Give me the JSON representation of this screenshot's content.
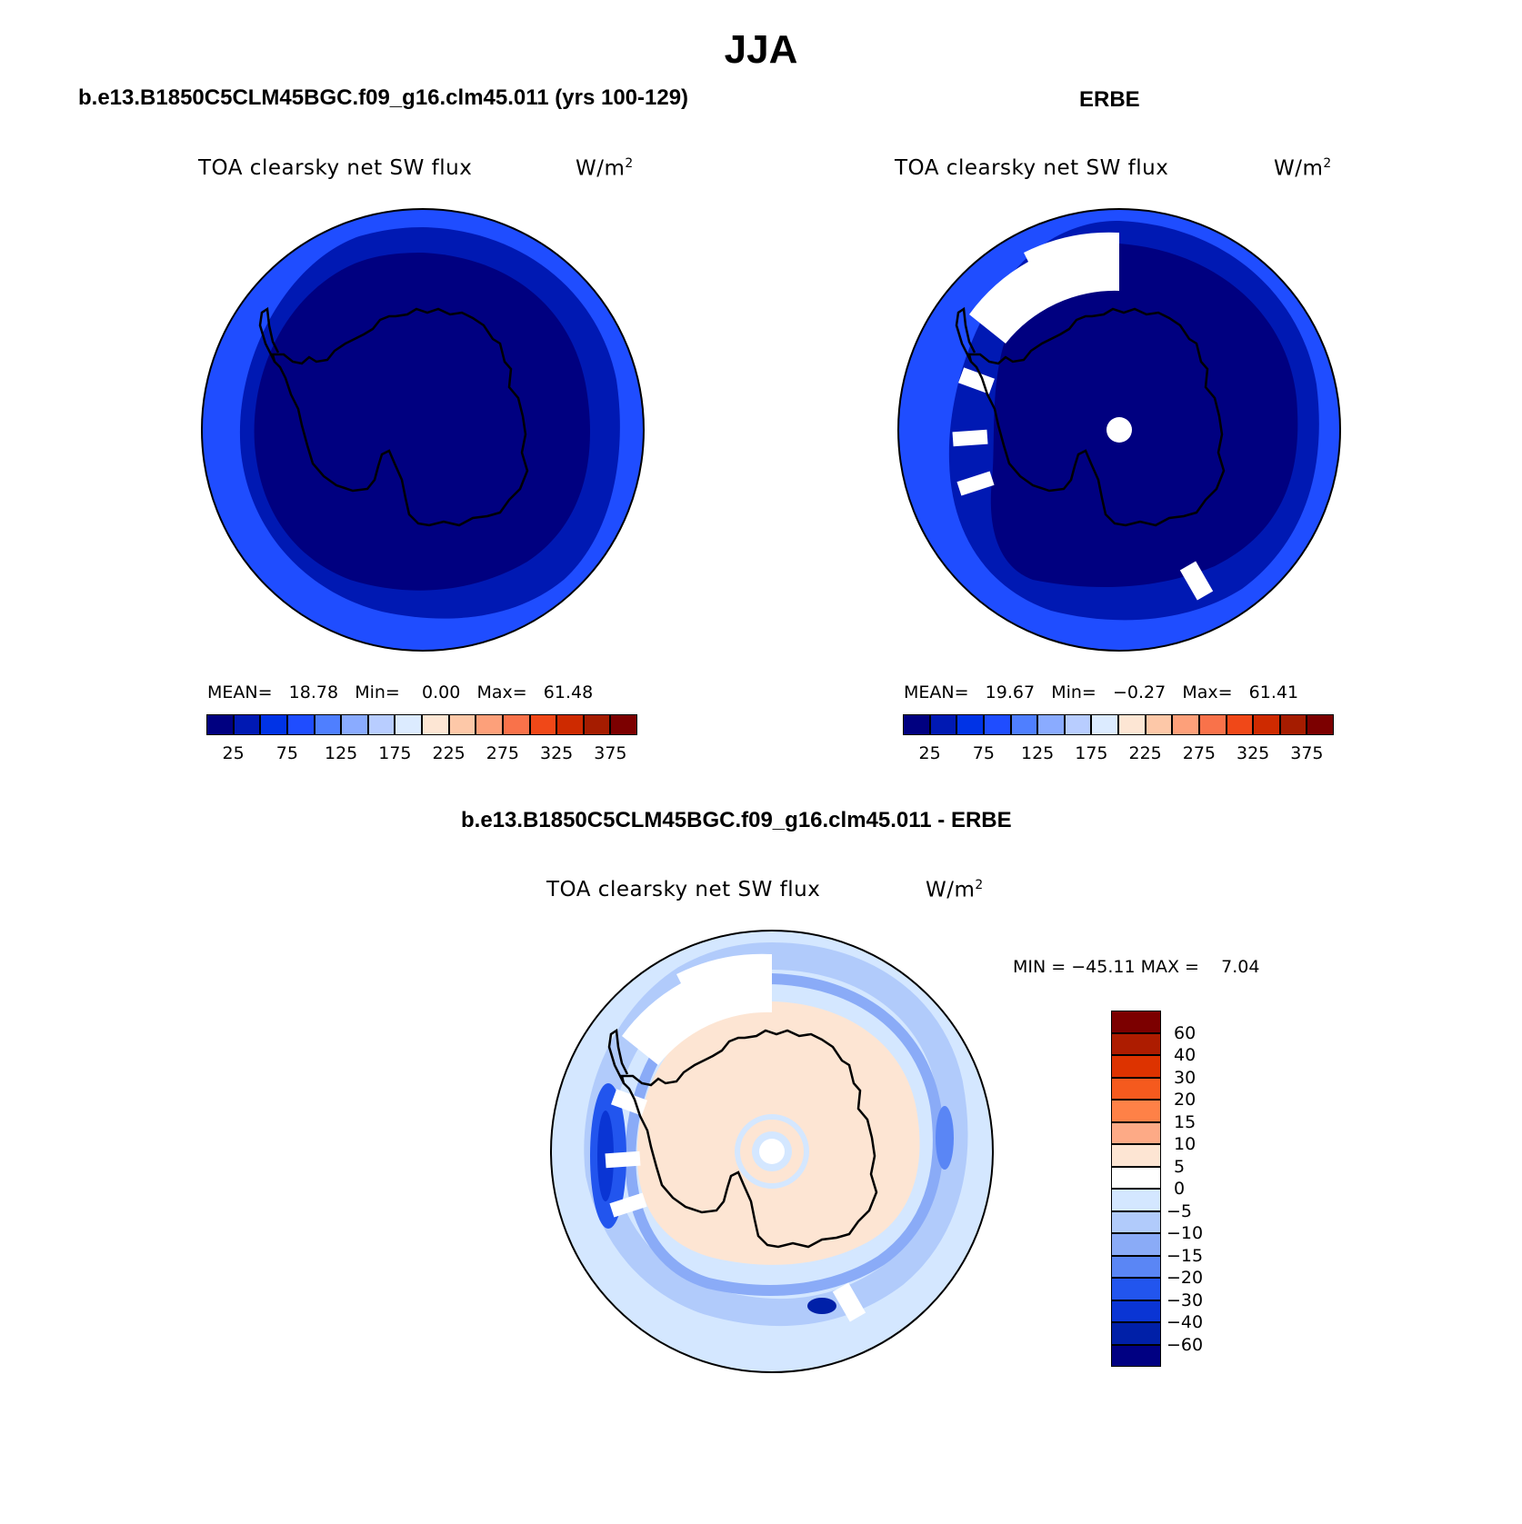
{
  "header": {
    "title": "JJA",
    "left_case": "b.e13.B1850C5CLM45BGC.f09_g16.clm45.011 (yrs 100-129)",
    "right_case": "ERBE",
    "diff_case": "b.e13.B1850C5CLM45BGC.f09_g16.clm45.011 - ERBE"
  },
  "panels": {
    "model": {
      "variable": "TOA clearsky net SW flux",
      "units_base": "W/m",
      "units_exp": "2",
      "mean_label": "MEAN=",
      "mean": "18.78",
      "min_label": "Min=",
      "min": "0.00",
      "max_label": "Max=",
      "max": "61.48"
    },
    "obs": {
      "variable": "TOA clearsky net SW flux",
      "units_base": "W/m",
      "units_exp": "2",
      "mean_label": "MEAN=",
      "mean": "19.67",
      "min_label": "Min=",
      "min": "−0.27",
      "max_label": "Max=",
      "max": "61.41"
    },
    "diff": {
      "variable": "TOA clearsky net SW flux",
      "units_base": "W/m",
      "units_exp": "2",
      "min_label": "MIN =",
      "min": "−45.11",
      "max_label": "MAX =",
      "max": "7.04"
    }
  },
  "colorbar_abs": {
    "colors": [
      "#000080",
      "#0019b3",
      "#0033e6",
      "#1f4dff",
      "#4f7fff",
      "#8aabff",
      "#b8cdff",
      "#dcebff",
      "#fde6d4",
      "#fdc8a8",
      "#fda07a",
      "#f9724a",
      "#f04818",
      "#ce2a00",
      "#a51c00",
      "#7c0000"
    ],
    "labels": [
      "25",
      "75",
      "125",
      "175",
      "225",
      "275",
      "325",
      "375"
    ]
  },
  "colorbar_diff": {
    "colors": [
      "#7c0000",
      "#ad1c00",
      "#dd3300",
      "#f55a1e",
      "#fe8147",
      "#fdaa86",
      "#fde5d3",
      "#ffffff",
      "#d4e7ff",
      "#b1cbfb",
      "#8aabf7",
      "#5a86f5",
      "#2255ee",
      "#0a35d4",
      "#0020a8",
      "#000082"
    ],
    "labels": [
      "60",
      "40",
      "30",
      "20",
      "15",
      "10",
      "5",
      "0",
      "−5",
      "−10",
      "−15",
      "−20",
      "−30",
      "−40",
      "−60"
    ]
  },
  "chart_data": [
    {
      "type": "heatmap",
      "panel": "model",
      "projection": "south polar stereographic",
      "mean": 18.78,
      "min": 0.0,
      "max": 61.48,
      "levels": [
        25,
        50,
        75,
        100,
        125,
        150,
        175,
        200,
        225,
        250,
        275,
        300,
        325,
        350,
        375
      ]
    },
    {
      "type": "heatmap",
      "panel": "obs",
      "projection": "south polar stereographic",
      "mean": 19.67,
      "min": -0.27,
      "max": 61.41,
      "levels": [
        25,
        50,
        75,
        100,
        125,
        150,
        175,
        200,
        225,
        250,
        275,
        300,
        325,
        350,
        375
      ]
    },
    {
      "type": "heatmap",
      "panel": "diff",
      "projection": "south polar stereographic",
      "min": -45.11,
      "max": 7.04,
      "levels": [
        60,
        40,
        30,
        20,
        15,
        10,
        5,
        0,
        -5,
        -10,
        -15,
        -20,
        -30,
        -40,
        -60
      ]
    }
  ]
}
